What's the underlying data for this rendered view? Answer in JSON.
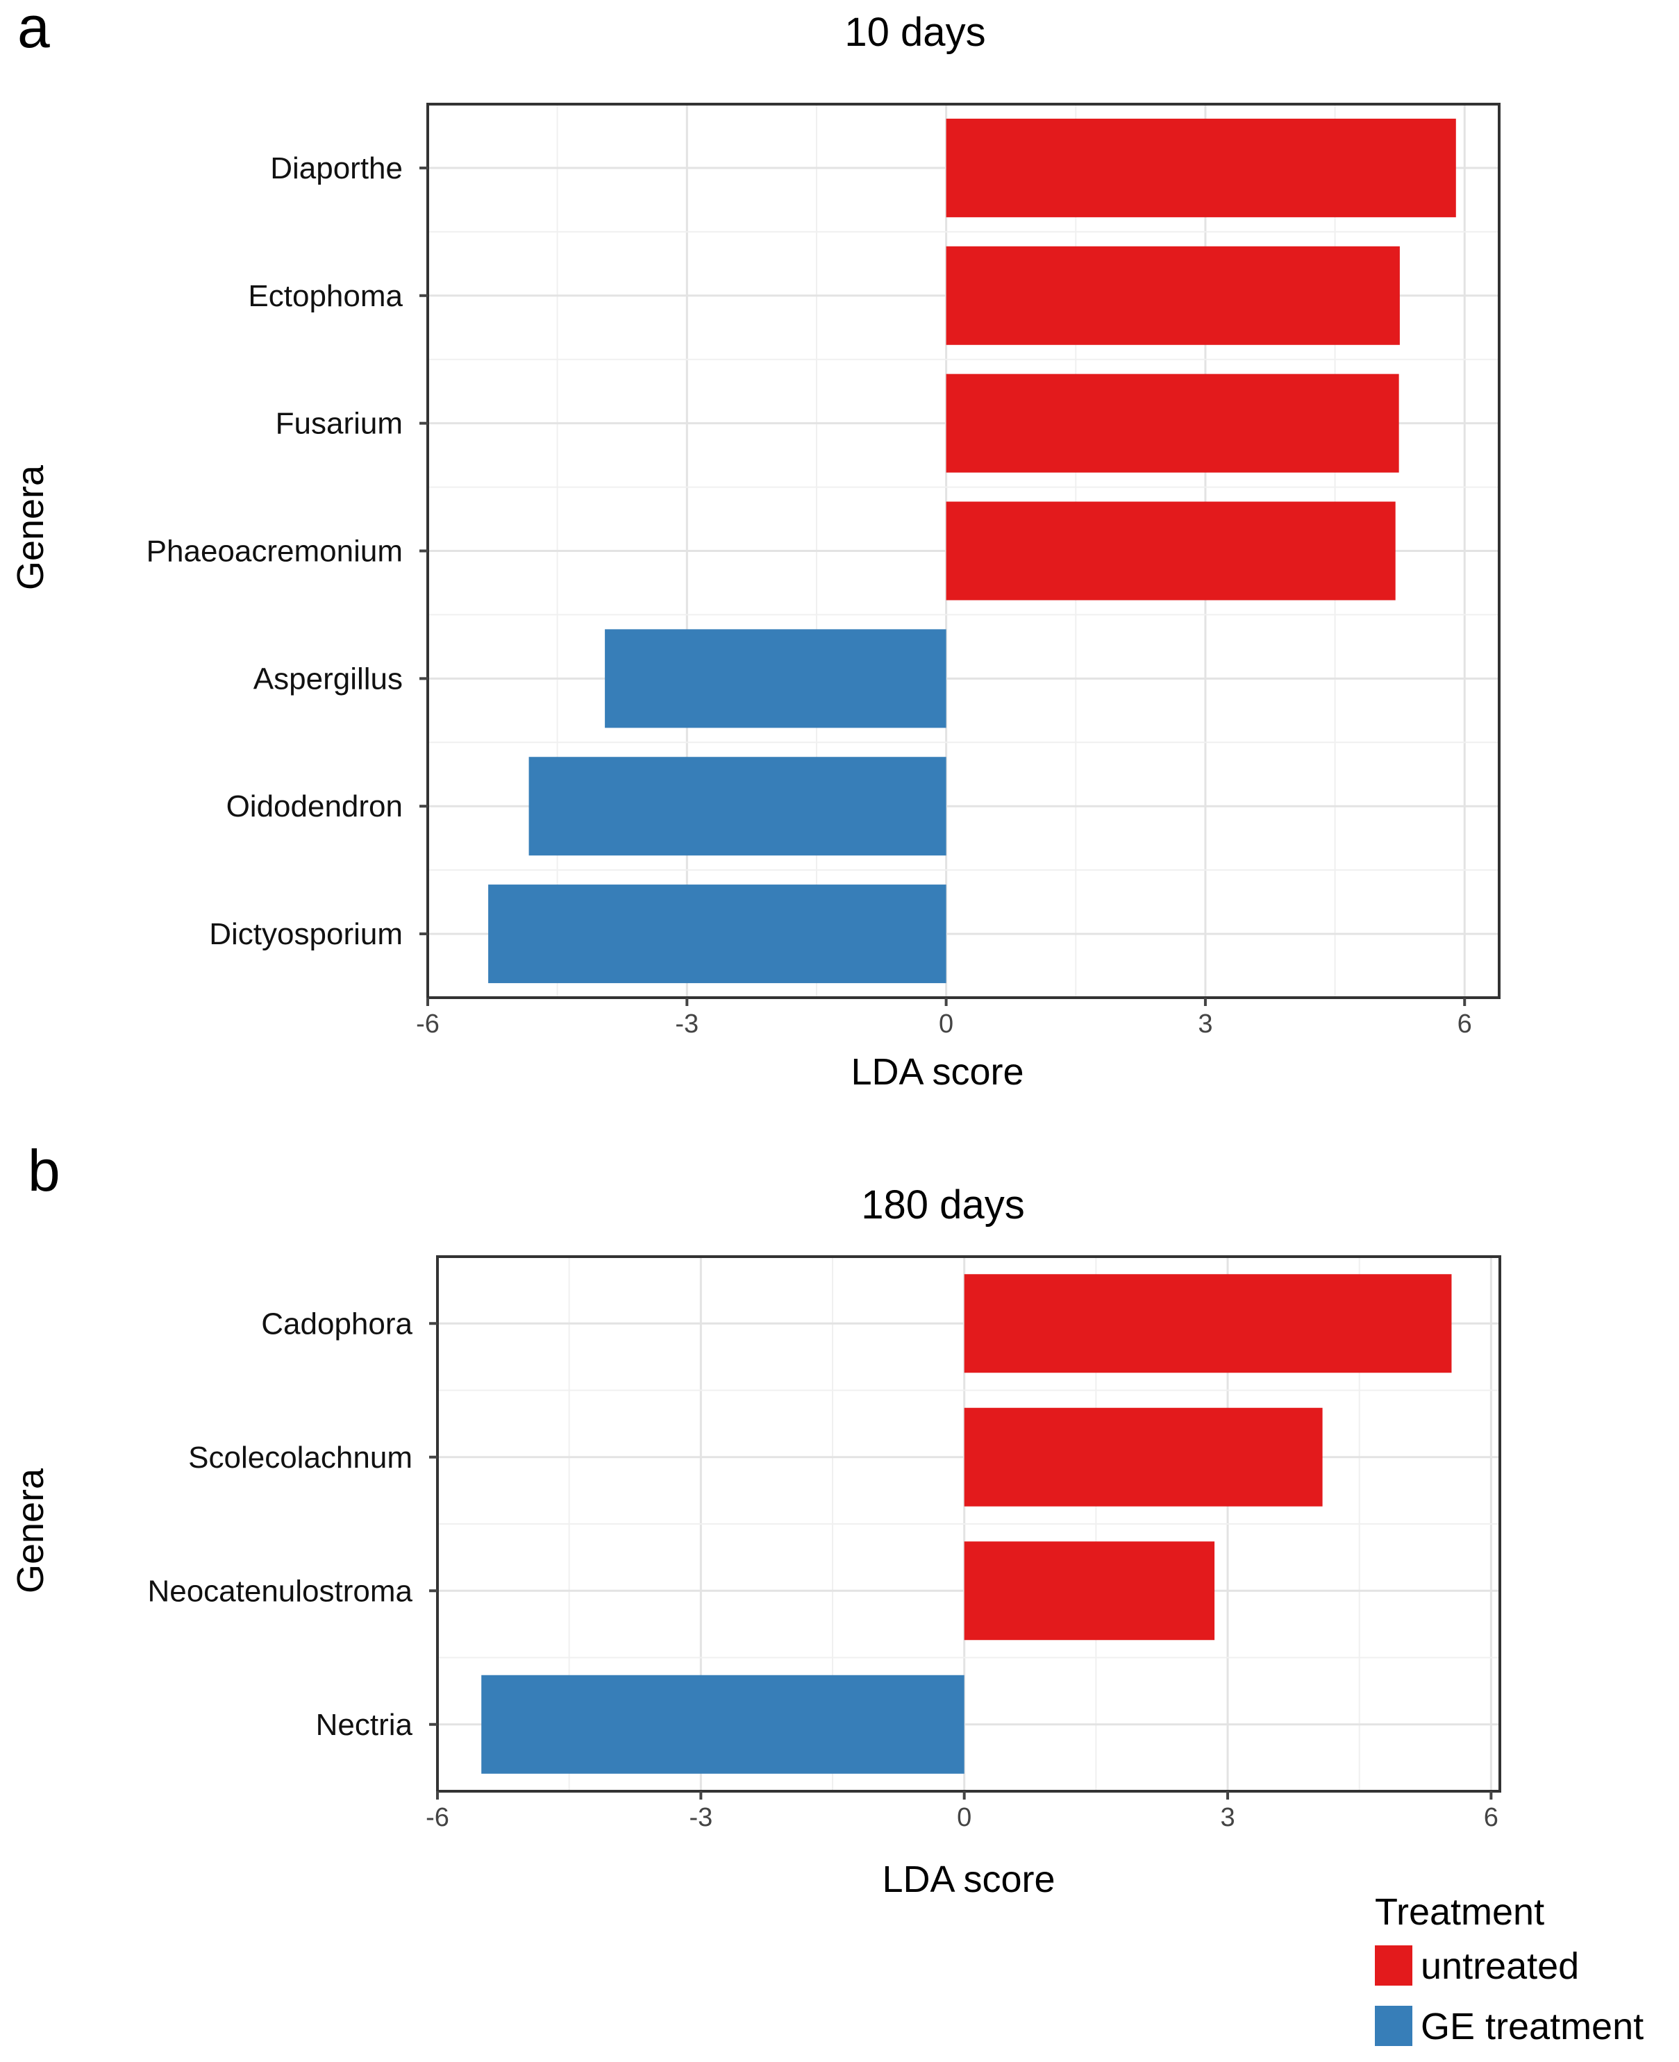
{
  "chart_data": [
    {
      "panel": "a",
      "type": "bar",
      "orientation": "horizontal",
      "title": "10 days",
      "xlabel": "LDA score",
      "ylabel": "Genera",
      "xlim": [
        -6,
        6.4
      ],
      "xticks": [
        -6,
        -3,
        0,
        3,
        6
      ],
      "xtick_labels": [
        "-6",
        "-3",
        "0",
        "3",
        "6"
      ],
      "grid": true,
      "bars": [
        {
          "genus": "Diaporthe",
          "value": 5.9,
          "group": "untreated"
        },
        {
          "genus": "Ectophoma",
          "value": 5.25,
          "group": "untreated"
        },
        {
          "genus": "Fusarium",
          "value": 5.24,
          "group": "untreated"
        },
        {
          "genus": "Phaeoacremonium",
          "value": 5.2,
          "group": "untreated"
        },
        {
          "genus": "Aspergillus",
          "value": -3.95,
          "group": "GE treatment"
        },
        {
          "genus": "Oidodendron",
          "value": -4.83,
          "group": "GE treatment"
        },
        {
          "genus": "Dictyosporium",
          "value": -5.3,
          "group": "GE treatment"
        }
      ]
    },
    {
      "panel": "b",
      "type": "bar",
      "orientation": "horizontal",
      "title": "180 days",
      "xlabel": "LDA score",
      "ylabel": "Genera",
      "xlim": [
        -6,
        6.1
      ],
      "xticks": [
        -6,
        -3,
        0,
        3,
        6
      ],
      "xtick_labels": [
        "-6",
        "-3",
        "0",
        "3",
        "6"
      ],
      "grid": true,
      "bars": [
        {
          "genus": "Cadophora",
          "value": 5.55,
          "group": "untreated"
        },
        {
          "genus": "Scolecolachnum",
          "value": 4.08,
          "group": "untreated"
        },
        {
          "genus": "Neocatenulostroma",
          "value": 2.85,
          "group": "untreated"
        },
        {
          "genus": "Nectria",
          "value": -5.5,
          "group": "GE treatment"
        }
      ]
    }
  ],
  "legend": {
    "title": "Treatment",
    "position": "bottom-right",
    "items": [
      {
        "label": "untreated",
        "color": "#e31a1c"
      },
      {
        "label": "GE treatment",
        "color": "#377eb8"
      }
    ]
  },
  "colors": {
    "untreated": "#e31a1c",
    "GE treatment": "#377eb8"
  }
}
